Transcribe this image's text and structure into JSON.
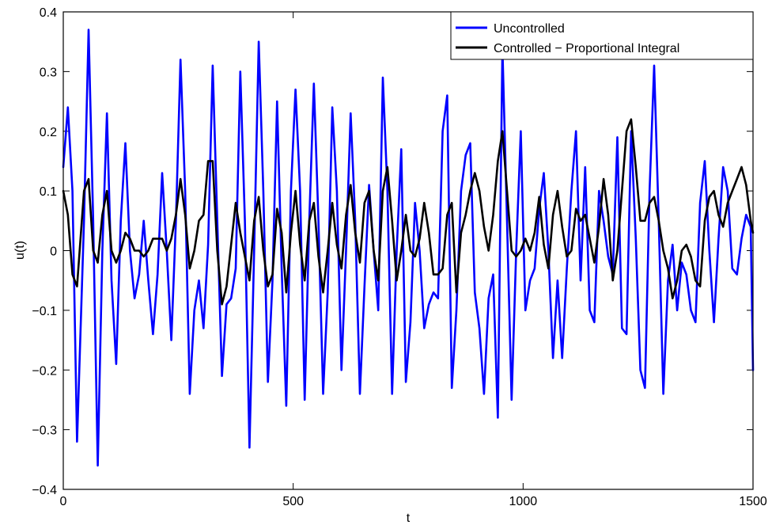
{
  "chart_data": {
    "type": "line",
    "xlabel": "t",
    "ylabel": "u(t)",
    "xlim": [
      0,
      1500
    ],
    "ylim": [
      -0.4,
      0.4
    ],
    "x_ticks": [
      0,
      500,
      1000,
      1500
    ],
    "y_ticks": [
      -0.4,
      -0.3,
      -0.2,
      -0.1,
      0,
      0.1,
      0.2,
      0.3,
      0.4
    ],
    "x_tick_labels": [
      "0",
      "500",
      "1000",
      "1500"
    ],
    "y_tick_labels": [
      "−0.4",
      "−0.3",
      "−0.2",
      "−0.1",
      "0",
      "0.1",
      "0.2",
      "0.3",
      "0.4"
    ],
    "grid": false,
    "legend_position": "top-right",
    "series": [
      {
        "name": "Uncontrolled",
        "color": "#0000ff",
        "x": [
          0,
          10,
          20,
          30,
          45,
          55,
          65,
          75,
          85,
          95,
          105,
          115,
          125,
          135,
          145,
          155,
          165,
          175,
          185,
          195,
          205,
          215,
          225,
          235,
          245,
          255,
          265,
          275,
          285,
          295,
          305,
          315,
          325,
          335,
          345,
          355,
          365,
          375,
          385,
          395,
          405,
          415,
          425,
          435,
          445,
          455,
          465,
          475,
          485,
          495,
          505,
          515,
          525,
          535,
          545,
          555,
          565,
          575,
          585,
          595,
          605,
          615,
          625,
          635,
          645,
          655,
          665,
          675,
          685,
          695,
          705,
          715,
          725,
          735,
          745,
          755,
          765,
          775,
          785,
          795,
          805,
          815,
          825,
          835,
          845,
          855,
          865,
          875,
          885,
          895,
          905,
          915,
          925,
          935,
          945,
          955,
          965,
          975,
          985,
          995,
          1005,
          1015,
          1025,
          1035,
          1045,
          1055,
          1065,
          1075,
          1085,
          1095,
          1105,
          1115,
          1125,
          1135,
          1145,
          1155,
          1165,
          1175,
          1185,
          1195,
          1205,
          1215,
          1225,
          1235,
          1245,
          1255,
          1265,
          1275,
          1285,
          1295,
          1305,
          1315,
          1325,
          1335,
          1345,
          1355,
          1365,
          1375,
          1385,
          1395,
          1405,
          1415,
          1425,
          1435,
          1445,
          1455,
          1465,
          1475,
          1485,
          1495,
          1500
        ],
        "y": [
          0.14,
          0.24,
          0.1,
          -0.32,
          0.05,
          0.37,
          0.05,
          -0.36,
          0.0,
          0.23,
          -0.05,
          -0.19,
          0.05,
          0.18,
          0.0,
          -0.08,
          -0.04,
          0.05,
          -0.05,
          -0.14,
          -0.04,
          0.13,
          0.0,
          -0.15,
          0.05,
          0.32,
          0.1,
          -0.24,
          -0.1,
          -0.05,
          -0.13,
          0.01,
          0.31,
          0.05,
          -0.21,
          -0.09,
          -0.08,
          -0.03,
          0.3,
          0.05,
          -0.33,
          0.0,
          0.35,
          0.1,
          -0.22,
          -0.05,
          0.25,
          -0.03,
          -0.26,
          0.1,
          0.27,
          0.1,
          -0.25,
          0.05,
          0.28,
          0.05,
          -0.24,
          -0.07,
          0.24,
          0.1,
          -0.2,
          0.0,
          0.23,
          0.05,
          -0.24,
          -0.06,
          0.11,
          0.0,
          -0.1,
          0.29,
          0.1,
          -0.24,
          0.0,
          0.17,
          -0.22,
          -0.12,
          0.08,
          0.0,
          -0.13,
          -0.09,
          -0.07,
          -0.08,
          0.2,
          0.26,
          -0.23,
          -0.1,
          0.1,
          0.16,
          0.18,
          -0.07,
          -0.13,
          -0.24,
          -0.08,
          -0.04,
          -0.28,
          0.34,
          0.05,
          -0.25,
          0.0,
          0.2,
          -0.1,
          -0.05,
          -0.03,
          0.07,
          0.13,
          0.0,
          -0.18,
          -0.05,
          -0.18,
          -0.03,
          0.1,
          0.2,
          -0.05,
          0.14,
          -0.1,
          -0.12,
          0.1,
          0.05,
          -0.01,
          -0.04,
          0.19,
          -0.13,
          -0.14,
          0.2,
          0.02,
          -0.2,
          -0.23,
          0.1,
          0.31,
          0.05,
          -0.24,
          -0.05,
          0.01,
          -0.1,
          -0.02,
          -0.04,
          -0.1,
          -0.12,
          0.08,
          0.15,
          0.0,
          -0.12,
          0.02,
          0.14,
          0.1,
          -0.03,
          -0.04,
          0.02,
          0.06,
          0.04,
          -0.2
        ]
      },
      {
        "name": "Controlled − Proportional Integral",
        "color": "#000000",
        "x": [
          0,
          10,
          20,
          30,
          45,
          55,
          65,
          75,
          85,
          95,
          105,
          115,
          125,
          135,
          145,
          155,
          165,
          175,
          185,
          195,
          205,
          215,
          225,
          235,
          245,
          255,
          265,
          275,
          285,
          295,
          305,
          315,
          325,
          335,
          345,
          355,
          365,
          375,
          385,
          395,
          405,
          415,
          425,
          435,
          445,
          455,
          465,
          475,
          485,
          495,
          505,
          515,
          525,
          535,
          545,
          555,
          565,
          575,
          585,
          595,
          605,
          615,
          625,
          635,
          645,
          655,
          665,
          675,
          685,
          695,
          705,
          715,
          725,
          735,
          745,
          755,
          765,
          775,
          785,
          795,
          805,
          815,
          825,
          835,
          845,
          855,
          865,
          875,
          885,
          895,
          905,
          915,
          925,
          935,
          945,
          955,
          965,
          975,
          985,
          995,
          1005,
          1015,
          1025,
          1035,
          1045,
          1055,
          1065,
          1075,
          1085,
          1095,
          1105,
          1115,
          1125,
          1135,
          1145,
          1155,
          1165,
          1175,
          1185,
          1195,
          1205,
          1215,
          1225,
          1235,
          1245,
          1255,
          1265,
          1275,
          1285,
          1295,
          1305,
          1315,
          1325,
          1335,
          1345,
          1355,
          1365,
          1375,
          1385,
          1395,
          1405,
          1415,
          1425,
          1435,
          1445,
          1455,
          1465,
          1475,
          1485,
          1495,
          1500
        ],
        "y": [
          0.1,
          0.06,
          -0.04,
          -0.06,
          0.1,
          0.12,
          0.0,
          -0.02,
          0.06,
          0.1,
          0.0,
          -0.02,
          0.0,
          0.03,
          0.02,
          0.0,
          0.0,
          -0.01,
          0.0,
          0.02,
          0.02,
          0.02,
          0.0,
          0.02,
          0.06,
          0.12,
          0.06,
          -0.03,
          0.0,
          0.05,
          0.06,
          0.15,
          0.15,
          0.0,
          -0.09,
          -0.06,
          0.01,
          0.08,
          0.03,
          -0.01,
          -0.05,
          0.05,
          0.09,
          0.0,
          -0.06,
          -0.04,
          0.07,
          0.03,
          -0.07,
          0.03,
          0.1,
          0.01,
          -0.05,
          0.05,
          0.08,
          -0.01,
          -0.07,
          0.0,
          0.08,
          0.01,
          -0.03,
          0.06,
          0.11,
          0.03,
          -0.02,
          0.08,
          0.1,
          0.0,
          -0.05,
          0.1,
          0.14,
          0.05,
          -0.05,
          0.0,
          0.06,
          0.0,
          -0.01,
          0.02,
          0.08,
          0.03,
          -0.04,
          -0.04,
          -0.03,
          0.06,
          0.08,
          -0.07,
          0.03,
          0.06,
          0.1,
          0.13,
          0.1,
          0.04,
          0.0,
          0.06,
          0.15,
          0.2,
          0.1,
          0.0,
          -0.01,
          0.0,
          0.02,
          0.0,
          0.03,
          0.09,
          0.01,
          -0.03,
          0.06,
          0.1,
          0.04,
          -0.01,
          0.0,
          0.07,
          0.05,
          0.06,
          0.02,
          -0.02,
          0.04,
          0.12,
          0.06,
          -0.05,
          0.0,
          0.1,
          0.2,
          0.22,
          0.14,
          0.05,
          0.05,
          0.08,
          0.09,
          0.05,
          0.0,
          -0.03,
          -0.08,
          -0.05,
          0.0,
          0.01,
          -0.01,
          -0.05,
          -0.06,
          0.05,
          0.09,
          0.1,
          0.06,
          0.04,
          0.08,
          0.1,
          0.12,
          0.14,
          0.11,
          0.05,
          0.03
        ]
      }
    ]
  }
}
